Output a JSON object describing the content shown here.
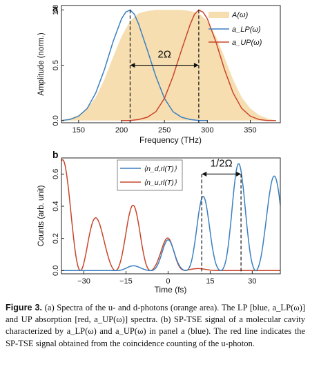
{
  "chart_data": [
    {
      "type": "area-line",
      "panel_label": "a",
      "xlabel": "Frequency (THz)",
      "ylabel": "Amplitude (norm.)",
      "xlim": [
        130,
        385
      ],
      "ylim": [
        -0.02,
        1.04
      ],
      "xticks": [
        "150",
        "200",
        "250",
        "300",
        "350"
      ],
      "xtick_values": [
        150,
        200,
        250,
        300,
        350
      ],
      "yticks": [
        "0.0",
        "0.5",
        "1.0"
      ],
      "ytick_values": [
        0,
        0.5,
        1.0
      ],
      "grid": false,
      "legend_position": "top-right",
      "series": [
        {
          "name": "A(ω)",
          "kind": "area",
          "color": "#f6deb1",
          "x": [
            130,
            140,
            150,
            160,
            170,
            180,
            190,
            200,
            210,
            220,
            230,
            240,
            250,
            260,
            270,
            280,
            290,
            300,
            310,
            320,
            330,
            340,
            350,
            360,
            370,
            380
          ],
          "y": [
            0.0,
            0.02,
            0.05,
            0.11,
            0.21,
            0.37,
            0.57,
            0.76,
            0.9,
            0.97,
            0.99,
            1.0,
            1.0,
            1.0,
            1.0,
            0.99,
            0.97,
            0.9,
            0.76,
            0.57,
            0.37,
            0.21,
            0.11,
            0.05,
            0.02,
            0.0
          ]
        },
        {
          "name": "a_LP(ω)",
          "kind": "line",
          "color": "#3a7fbf",
          "x": [
            130,
            140,
            150,
            160,
            170,
            180,
            190,
            200,
            205,
            210,
            215,
            220,
            230,
            240,
            250,
            260,
            270,
            280,
            290,
            300
          ],
          "y": [
            0.0,
            0.01,
            0.04,
            0.11,
            0.25,
            0.46,
            0.71,
            0.92,
            0.98,
            1.0,
            0.96,
            0.87,
            0.64,
            0.4,
            0.2,
            0.08,
            0.03,
            0.01,
            0.0,
            0.0
          ]
        },
        {
          "name": "a_UP(ω)",
          "kind": "line",
          "color": "#c9452a",
          "x": [
            200,
            210,
            220,
            230,
            240,
            250,
            260,
            270,
            280,
            285,
            290,
            295,
            300,
            310,
            320,
            330,
            340,
            350,
            360,
            370,
            380
          ],
          "y": [
            0.0,
            0.0,
            0.01,
            0.03,
            0.08,
            0.2,
            0.4,
            0.64,
            0.87,
            0.96,
            1.0,
            0.98,
            0.92,
            0.71,
            0.46,
            0.25,
            0.11,
            0.04,
            0.01,
            0.0,
            0.0
          ]
        }
      ],
      "annotations": [
        {
          "text": "2Ω",
          "from_x": 210,
          "to_x": 290,
          "y": 0.5,
          "style": "double-arrow"
        },
        {
          "kind": "dashed-vline",
          "x": 210
        },
        {
          "kind": "dashed-vline",
          "x": 290
        }
      ]
    },
    {
      "type": "line",
      "panel_label": "b",
      "xlabel": "Time (fs)",
      "ylabel": "Counts (arb. unit)",
      "xlim": [
        -38,
        40
      ],
      "ylim": [
        -0.02,
        0.7
      ],
      "xticks": [
        "−30",
        "−15",
        "0",
        "15",
        "30"
      ],
      "xtick_values": [
        -30,
        -15,
        0,
        15,
        30
      ],
      "yticks": [
        "0.0",
        "0.2",
        "0.4",
        "0.6"
      ],
      "ytick_values": [
        0,
        0.2,
        0.4,
        0.6
      ],
      "grid": false,
      "legend_position": "top-left",
      "series": [
        {
          "name": "⟨n_d,rl(T)⟩",
          "color": "#3a7fbf"
        },
        {
          "name": "⟨n_u,rl(T)⟩",
          "color": "#c9452a"
        }
      ],
      "annotations": [
        {
          "text": "1/2Ω",
          "from_x": 12,
          "to_x": 26,
          "y": 0.6,
          "style": "double-arrow"
        },
        {
          "kind": "dashed-vline",
          "x": 12
        },
        {
          "kind": "dashed-vline",
          "x": 26
        }
      ]
    }
  ],
  "caption": {
    "label": "Figure 3.",
    "text": "(a) Spectra of the u- and d-photons (orange area). The LP [blue, a_LP(ω)] and UP absorption [red, a_UP(ω)] spectra. (b) SP-TSE signal of a molecular cavity characterized by a_LP(ω) and a_UP(ω) in panel a (blue). The red line indicates the SP-TSE signal obtained from the coincidence counting of the u-photon."
  }
}
